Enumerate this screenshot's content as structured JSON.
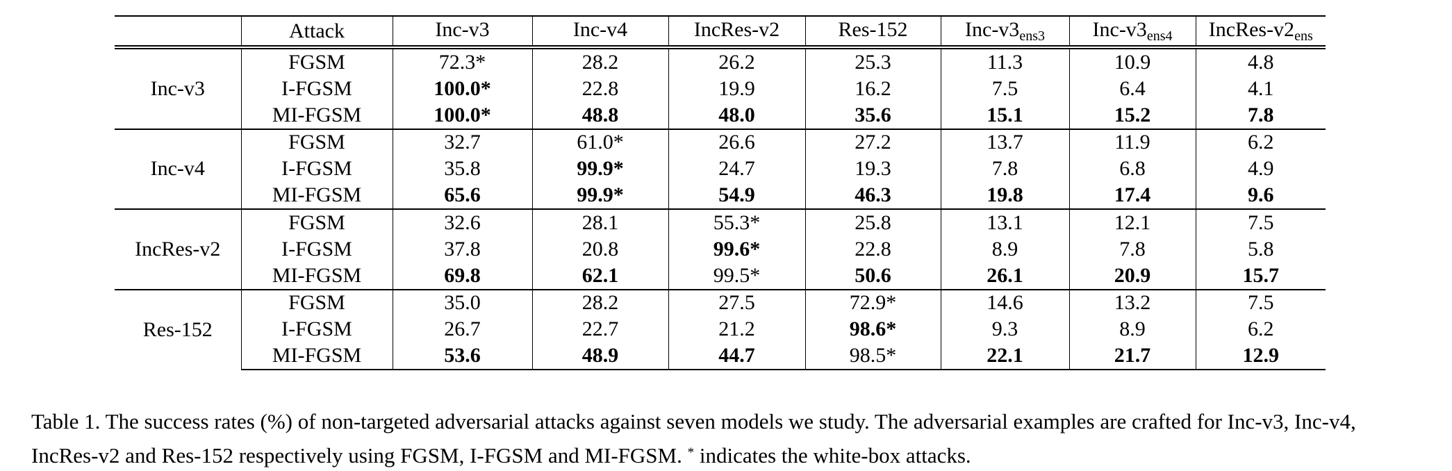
{
  "table": {
    "header": {
      "corner": "",
      "attack": "Attack",
      "models": [
        {
          "base": "Inc-v3",
          "sub": ""
        },
        {
          "base": "Inc-v4",
          "sub": ""
        },
        {
          "base": "IncRes-v2",
          "sub": ""
        },
        {
          "base": "Res-152",
          "sub": ""
        },
        {
          "base": "Inc-v3",
          "sub": "ens3"
        },
        {
          "base": "Inc-v3",
          "sub": "ens4"
        },
        {
          "base": "IncRes-v2",
          "sub": "ens"
        }
      ]
    },
    "groups": [
      {
        "model": "Inc-v3",
        "rows": [
          {
            "attack": "FGSM",
            "cells": [
              {
                "v": "72.3*",
                "b": false
              },
              {
                "v": "28.2",
                "b": false
              },
              {
                "v": "26.2",
                "b": false
              },
              {
                "v": "25.3",
                "b": false
              },
              {
                "v": "11.3",
                "b": false
              },
              {
                "v": "10.9",
                "b": false
              },
              {
                "v": "4.8",
                "b": false
              }
            ]
          },
          {
            "attack": "I-FGSM",
            "cells": [
              {
                "v": "100.0*",
                "b": true
              },
              {
                "v": "22.8",
                "b": false
              },
              {
                "v": "19.9",
                "b": false
              },
              {
                "v": "16.2",
                "b": false
              },
              {
                "v": "7.5",
                "b": false
              },
              {
                "v": "6.4",
                "b": false
              },
              {
                "v": "4.1",
                "b": false
              }
            ]
          },
          {
            "attack": "MI-FGSM",
            "cells": [
              {
                "v": "100.0*",
                "b": true
              },
              {
                "v": "48.8",
                "b": true
              },
              {
                "v": "48.0",
                "b": true
              },
              {
                "v": "35.6",
                "b": true
              },
              {
                "v": "15.1",
                "b": true
              },
              {
                "v": "15.2",
                "b": true
              },
              {
                "v": "7.8",
                "b": true
              }
            ]
          }
        ]
      },
      {
        "model": "Inc-v4",
        "rows": [
          {
            "attack": "FGSM",
            "cells": [
              {
                "v": "32.7",
                "b": false
              },
              {
                "v": "61.0*",
                "b": false
              },
              {
                "v": "26.6",
                "b": false
              },
              {
                "v": "27.2",
                "b": false
              },
              {
                "v": "13.7",
                "b": false
              },
              {
                "v": "11.9",
                "b": false
              },
              {
                "v": "6.2",
                "b": false
              }
            ]
          },
          {
            "attack": "I-FGSM",
            "cells": [
              {
                "v": "35.8",
                "b": false
              },
              {
                "v": "99.9*",
                "b": true
              },
              {
                "v": "24.7",
                "b": false
              },
              {
                "v": "19.3",
                "b": false
              },
              {
                "v": "7.8",
                "b": false
              },
              {
                "v": "6.8",
                "b": false
              },
              {
                "v": "4.9",
                "b": false
              }
            ]
          },
          {
            "attack": "MI-FGSM",
            "cells": [
              {
                "v": "65.6",
                "b": true
              },
              {
                "v": "99.9*",
                "b": true
              },
              {
                "v": "54.9",
                "b": true
              },
              {
                "v": "46.3",
                "b": true
              },
              {
                "v": "19.8",
                "b": true
              },
              {
                "v": "17.4",
                "b": true
              },
              {
                "v": "9.6",
                "b": true
              }
            ]
          }
        ]
      },
      {
        "model": "IncRes-v2",
        "rows": [
          {
            "attack": "FGSM",
            "cells": [
              {
                "v": "32.6",
                "b": false
              },
              {
                "v": "28.1",
                "b": false
              },
              {
                "v": "55.3*",
                "b": false
              },
              {
                "v": "25.8",
                "b": false
              },
              {
                "v": "13.1",
                "b": false
              },
              {
                "v": "12.1",
                "b": false
              },
              {
                "v": "7.5",
                "b": false
              }
            ]
          },
          {
            "attack": "I-FGSM",
            "cells": [
              {
                "v": "37.8",
                "b": false
              },
              {
                "v": "20.8",
                "b": false
              },
              {
                "v": "99.6*",
                "b": true
              },
              {
                "v": "22.8",
                "b": false
              },
              {
                "v": "8.9",
                "b": false
              },
              {
                "v": "7.8",
                "b": false
              },
              {
                "v": "5.8",
                "b": false
              }
            ]
          },
          {
            "attack": "MI-FGSM",
            "cells": [
              {
                "v": "69.8",
                "b": true
              },
              {
                "v": "62.1",
                "b": true
              },
              {
                "v": "99.5*",
                "b": false
              },
              {
                "v": "50.6",
                "b": true
              },
              {
                "v": "26.1",
                "b": true
              },
              {
                "v": "20.9",
                "b": true
              },
              {
                "v": "15.7",
                "b": true
              }
            ]
          }
        ]
      },
      {
        "model": "Res-152",
        "rows": [
          {
            "attack": "FGSM",
            "cells": [
              {
                "v": "35.0",
                "b": false
              },
              {
                "v": "28.2",
                "b": false
              },
              {
                "v": "27.5",
                "b": false
              },
              {
                "v": "72.9*",
                "b": false
              },
              {
                "v": "14.6",
                "b": false
              },
              {
                "v": "13.2",
                "b": false
              },
              {
                "v": "7.5",
                "b": false
              }
            ]
          },
          {
            "attack": "I-FGSM",
            "cells": [
              {
                "v": "26.7",
                "b": false
              },
              {
                "v": "22.7",
                "b": false
              },
              {
                "v": "21.2",
                "b": false
              },
              {
                "v": "98.6*",
                "b": true
              },
              {
                "v": "9.3",
                "b": false
              },
              {
                "v": "8.9",
                "b": false
              },
              {
                "v": "6.2",
                "b": false
              }
            ]
          },
          {
            "attack": "MI-FGSM",
            "cells": [
              {
                "v": "53.6",
                "b": true
              },
              {
                "v": "48.9",
                "b": true
              },
              {
                "v": "44.7",
                "b": true
              },
              {
                "v": "98.5*",
                "b": false
              },
              {
                "v": "22.1",
                "b": true
              },
              {
                "v": "21.7",
                "b": true
              },
              {
                "v": "12.9",
                "b": true
              }
            ]
          }
        ]
      }
    ]
  },
  "caption": {
    "part1": "Table 1. The success rates (%) of non-targeted adversarial attacks against seven models we study. The adversarial examples are crafted for Inc-v3, Inc-v4, IncRes-v2 and Res-152 respectively using FGSM, I-FGSM and MI-FGSM.",
    "mark": "*",
    "part2": "indicates the white-box attacks."
  }
}
